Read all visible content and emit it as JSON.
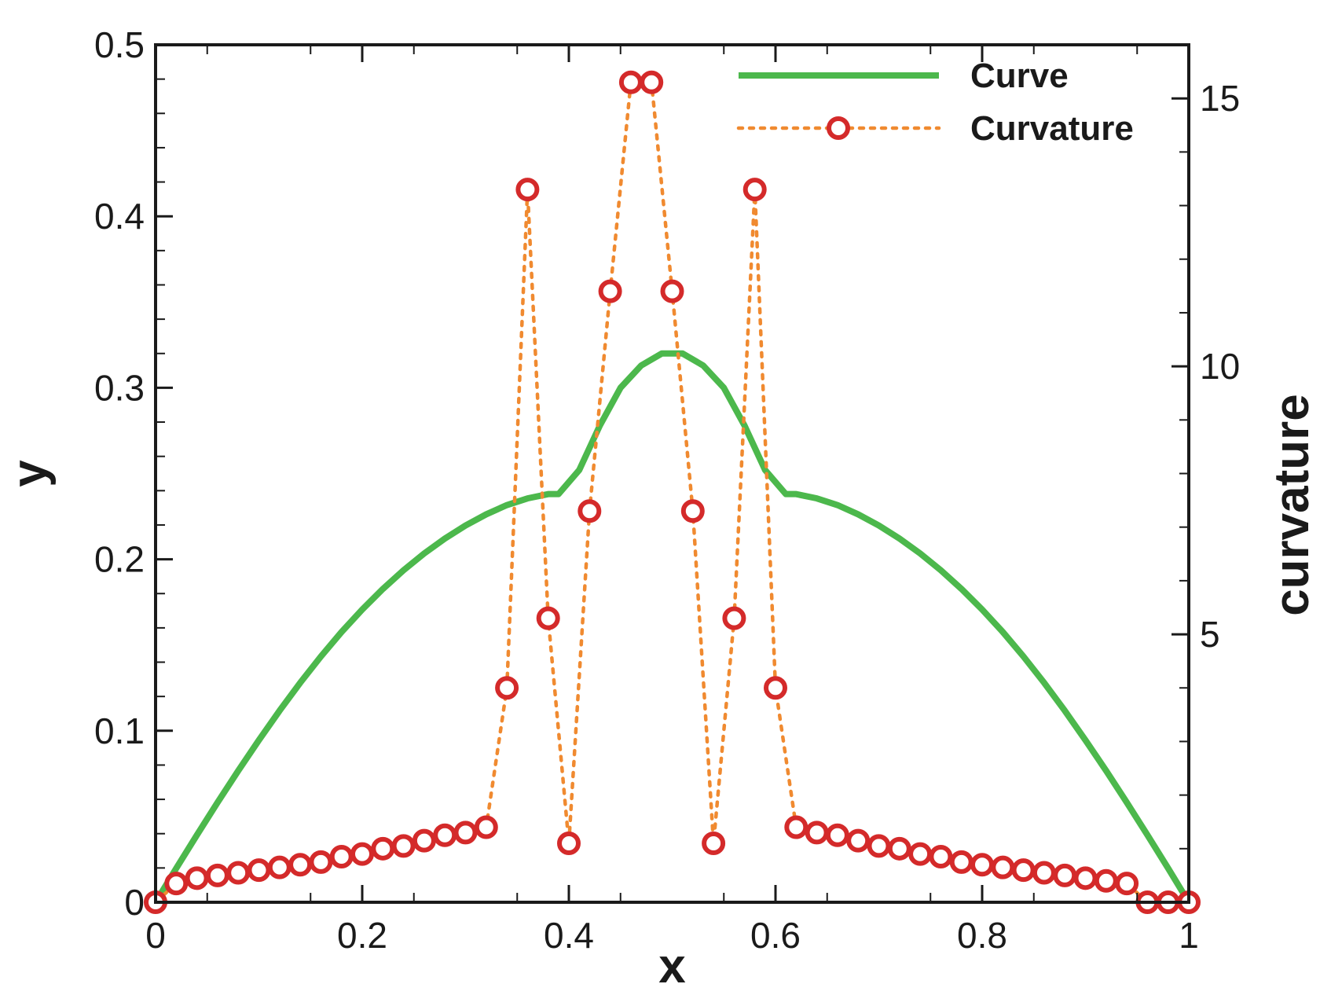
{
  "chart_data": {
    "type": "line",
    "title": "",
    "xlabel": "x",
    "ylabel": "y",
    "y2label": "curvature",
    "xlim": [
      0,
      1
    ],
    "ylim": [
      0,
      0.5
    ],
    "y2lim": [
      0,
      16
    ],
    "x_ticks": [
      "0",
      "0.2",
      "0.4",
      "0.6",
      "0.8",
      "1"
    ],
    "y_ticks": [
      "0",
      "0.1",
      "0.2",
      "0.3",
      "0.4",
      "0.5"
    ],
    "y2_ticks": [
      "5",
      "10",
      "15"
    ],
    "grid": false,
    "legend_position": "top-right",
    "series": [
      {
        "name": "Curve",
        "axis": "left",
        "style": "solid-line",
        "color": "#4cb84c",
        "x": [
          0,
          0.02,
          0.04,
          0.06,
          0.08,
          0.1,
          0.12,
          0.14,
          0.16,
          0.18,
          0.2,
          0.22,
          0.24,
          0.26,
          0.28,
          0.3,
          0.32,
          0.34,
          0.36,
          0.38,
          0.39,
          0.41,
          0.43,
          0.45,
          0.47,
          0.49,
          0.5,
          0.51,
          0.53,
          0.55,
          0.57,
          0.59,
          0.61,
          0.62,
          0.64,
          0.66,
          0.68,
          0.7,
          0.72,
          0.74,
          0.76,
          0.78,
          0.8,
          0.82,
          0.84,
          0.86,
          0.88,
          0.9,
          0.92,
          0.94,
          0.96,
          0.98,
          1
        ],
        "y": [
          0,
          0.0198,
          0.0392,
          0.0582,
          0.0767,
          0.0945,
          0.1117,
          0.128,
          0.1433,
          0.1576,
          0.1707,
          0.1827,
          0.1936,
          0.2034,
          0.2121,
          0.2197,
          0.2262,
          0.2316,
          0.2355,
          0.238,
          0.238,
          0.252,
          0.278,
          0.3,
          0.313,
          0.32,
          0.32,
          0.32,
          0.313,
          0.3,
          0.278,
          0.252,
          0.238,
          0.238,
          0.2355,
          0.2316,
          0.2262,
          0.2197,
          0.2121,
          0.2034,
          0.1936,
          0.1827,
          0.1707,
          0.1576,
          0.1433,
          0.128,
          0.1117,
          0.0945,
          0.0767,
          0.0582,
          0.0392,
          0.0198,
          0
        ]
      },
      {
        "name": "Curvature",
        "axis": "right",
        "style": "dotted-line-circles",
        "color": "#f08a30",
        "marker_color": "#d42a2a",
        "x": [
          0,
          0.02,
          0.04,
          0.06,
          0.08,
          0.1,
          0.12,
          0.14,
          0.16,
          0.18,
          0.2,
          0.22,
          0.24,
          0.26,
          0.28,
          0.3,
          0.32,
          0.34,
          0.36,
          0.38,
          0.4,
          0.42,
          0.44,
          0.46,
          0.48,
          0.5,
          0.52,
          0.54,
          0.56,
          0.58,
          0.6,
          0.62,
          0.64,
          0.66,
          0.68,
          0.7,
          0.72,
          0.74,
          0.76,
          0.78,
          0.8,
          0.82,
          0.84,
          0.86,
          0.88,
          0.9,
          0.92,
          0.94,
          0.96,
          0.98,
          1.0
        ],
        "y": [
          0.0,
          0.35,
          0.45,
          0.5,
          0.55,
          0.6,
          0.65,
          0.7,
          0.75,
          0.85,
          0.9,
          1.0,
          1.05,
          1.15,
          1.25,
          1.3,
          1.4,
          4.0,
          13.3,
          5.3,
          1.1,
          7.3,
          11.4,
          15.3,
          15.3,
          11.4,
          7.3,
          1.1,
          5.3,
          13.3,
          4.0,
          1.4,
          1.3,
          1.25,
          1.15,
          1.05,
          1.0,
          0.9,
          0.85,
          0.75,
          0.7,
          0.65,
          0.6,
          0.55,
          0.5,
          0.45,
          0.4,
          0.35,
          0.0,
          0.0,
          0.0
        ]
      }
    ]
  }
}
